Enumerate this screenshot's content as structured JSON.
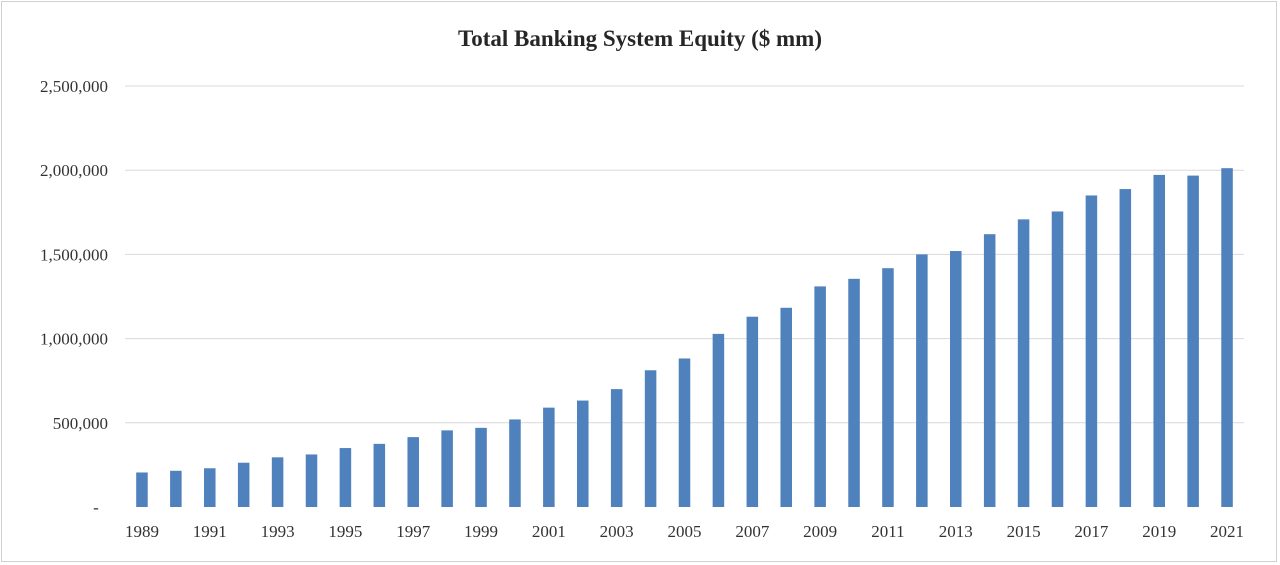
{
  "chart_data": {
    "type": "bar",
    "title": "Total Banking System Equity ($ mm)",
    "xlabel": "",
    "ylabel": "",
    "ylim": [
      0,
      2500000
    ],
    "yticks": [
      0,
      500000,
      1000000,
      1500000,
      2000000,
      2500000
    ],
    "ytick_labels": [
      "-",
      "500,000",
      "1,000,000",
      "1,500,000",
      "2,000,000",
      "2,500,000"
    ],
    "grid": true,
    "legend": "none",
    "bar_color": "#4f81bd",
    "categories": [
      "1989",
      "1990",
      "1991",
      "1992",
      "1993",
      "1994",
      "1995",
      "1996",
      "1997",
      "1998",
      "1999",
      "2000",
      "2001",
      "2002",
      "2003",
      "2004",
      "2005",
      "2006",
      "2007",
      "2008",
      "2009",
      "2010",
      "2011",
      "2012",
      "2013",
      "2014",
      "2015",
      "2016",
      "2017",
      "2018",
      "2019",
      "2020",
      "2021"
    ],
    "xtick_labels_shown": [
      "1989",
      "1991",
      "1993",
      "1995",
      "1997",
      "1999",
      "2001",
      "2003",
      "2005",
      "2007",
      "2009",
      "2011",
      "2013",
      "2015",
      "2017",
      "2019",
      "2021"
    ],
    "values": [
      205000,
      215000,
      230000,
      263000,
      295000,
      312000,
      350000,
      375000,
      415000,
      455000,
      470000,
      520000,
      590000,
      632000,
      700000,
      812000,
      882000,
      1028000,
      1130000,
      1183000,
      1310000,
      1355000,
      1418000,
      1500000,
      1520000,
      1620000,
      1708000,
      1755000,
      1850000,
      1888000,
      1972000,
      1968000,
      2012000
    ]
  }
}
